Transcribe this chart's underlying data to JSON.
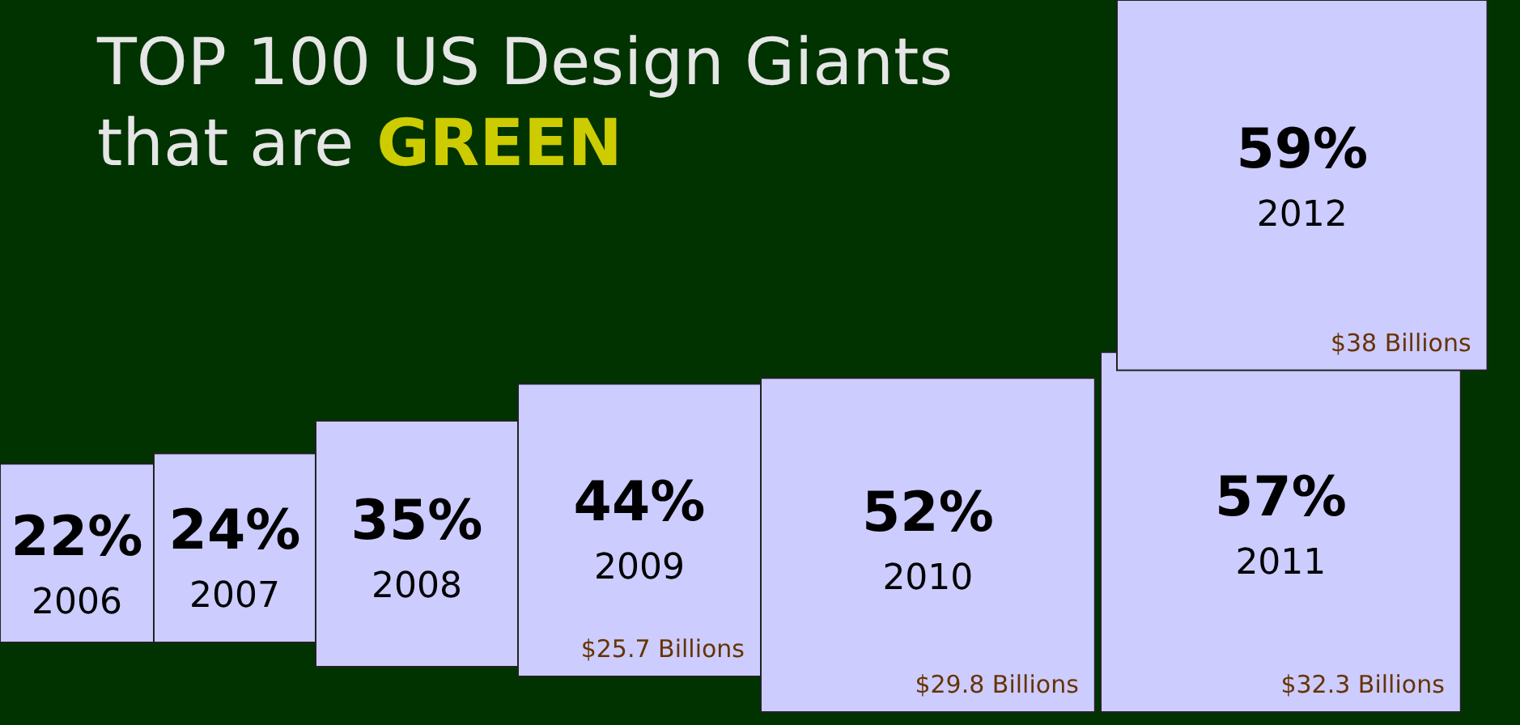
{
  "chart_data": {
    "type": "other",
    "title": "TOP 100 US Design Giants that are GREEN",
    "categories": [
      "2006",
      "2007",
      "2008",
      "2009",
      "2010",
      "2011",
      "2012"
    ],
    "values": [
      22,
      24,
      35,
      44,
      52,
      57,
      59
    ],
    "value_labels": [
      "22%",
      "24%",
      "35%",
      "44%",
      "52%",
      "57%",
      "59%"
    ],
    "color": "#ccccff",
    "annotations": [
      "$25.7 Billions",
      "$29.8 Billions",
      "$32.3 Billions",
      "$38 Billions"
    ]
  }
}
